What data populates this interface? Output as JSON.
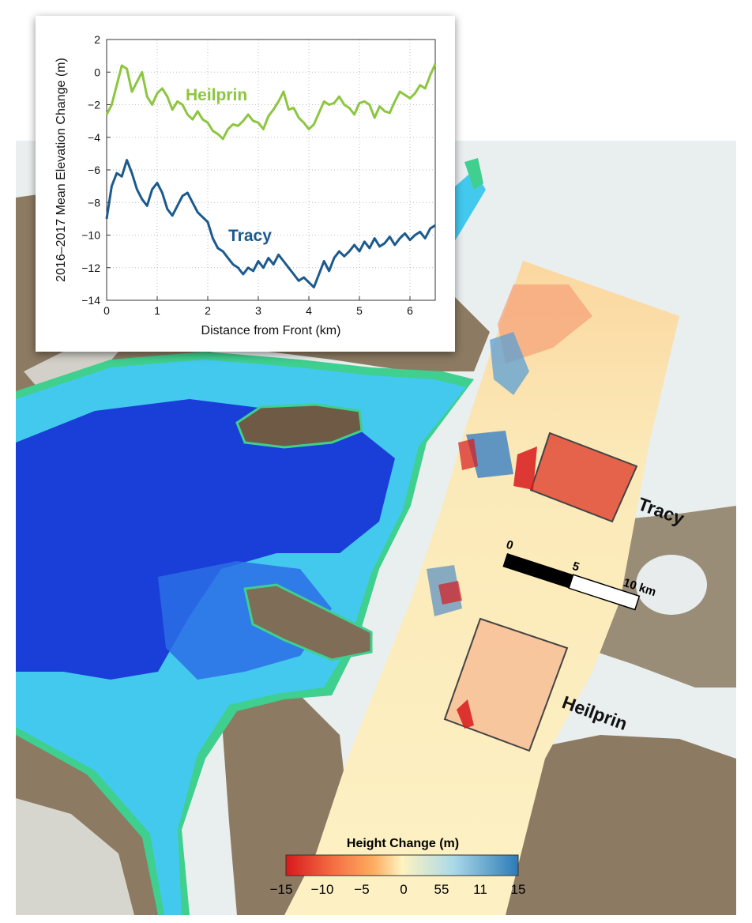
{
  "map": {
    "glacier_labels": {
      "tracy": "Tracy",
      "heilprin": "Heilprin"
    },
    "scale_bar": {
      "ticks": [
        "0",
        "5",
        "10 km"
      ]
    },
    "legend": {
      "title": "Height Change (m)",
      "ticks": [
        "−15",
        "−10",
        "−5",
        "0",
        "55",
        "11",
        "15"
      ],
      "colors": [
        "#d7191c",
        "#f46d43",
        "#fdae61",
        "#fff3bf",
        "#abd9e9",
        "#2c7bb6"
      ]
    },
    "colors": {
      "deep_water": "#1a3fd8",
      "shallow_water": "#43c9ee",
      "shelf": "#3fcf8e",
      "land": "#8c7a62",
      "ice": "#e9eeee"
    }
  },
  "chart_data": {
    "type": "line",
    "xlabel": "Distance from Front (km)",
    "ylabel": "2016–2017 Mean Elevation Change (m)",
    "xlim": [
      0,
      6.5
    ],
    "ylim": [
      -14,
      2
    ],
    "xticks": [
      "0",
      "1",
      "2",
      "3",
      "4",
      "5",
      "6"
    ],
    "yticks": [
      "2",
      "0",
      "−2",
      "−4",
      "−6",
      "−8",
      "−10",
      "−12",
      "−14"
    ],
    "grid": true,
    "series": [
      {
        "name": "Heilprin",
        "color": "#8cc63f",
        "x": [
          0,
          0.1,
          0.2,
          0.3,
          0.4,
          0.5,
          0.6,
          0.7,
          0.8,
          0.9,
          1.0,
          1.1,
          1.2,
          1.3,
          1.4,
          1.5,
          1.6,
          1.7,
          1.8,
          1.9,
          2.0,
          2.1,
          2.2,
          2.3,
          2.4,
          2.5,
          2.6,
          2.7,
          2.8,
          2.9,
          3.0,
          3.1,
          3.2,
          3.3,
          3.4,
          3.5,
          3.6,
          3.7,
          3.8,
          3.9,
          4.0,
          4.1,
          4.2,
          4.3,
          4.4,
          4.5,
          4.6,
          4.7,
          4.8,
          4.9,
          5.0,
          5.1,
          5.2,
          5.3,
          5.4,
          5.5,
          5.6,
          5.7,
          5.8,
          5.9,
          6.0,
          6.1,
          6.2,
          6.3,
          6.4,
          6.5
        ],
        "y": [
          -2.6,
          -2.0,
          -0.8,
          0.4,
          0.2,
          -1.2,
          -0.6,
          0.0,
          -1.5,
          -2.0,
          -1.3,
          -1.0,
          -1.5,
          -2.3,
          -1.8,
          -2.0,
          -2.6,
          -2.9,
          -2.4,
          -2.9,
          -3.1,
          -3.6,
          -3.8,
          -4.1,
          -3.5,
          -3.2,
          -3.3,
          -3.0,
          -2.6,
          -3.0,
          -3.1,
          -3.5,
          -2.7,
          -2.3,
          -1.8,
          -1.2,
          -2.3,
          -2.2,
          -2.8,
          -3.1,
          -3.5,
          -3.2,
          -2.5,
          -1.8,
          -2.0,
          -1.9,
          -1.5,
          -2.0,
          -2.2,
          -2.6,
          -1.9,
          -1.8,
          -2.0,
          -2.8,
          -2.1,
          -2.4,
          -2.5,
          -1.8,
          -1.2,
          -1.4,
          -1.6,
          -1.3,
          -0.8,
          -1.0,
          -0.2,
          0.5
        ]
      },
      {
        "name": "Tracy",
        "color": "#1b5a8e",
        "x": [
          0,
          0.1,
          0.2,
          0.3,
          0.4,
          0.5,
          0.6,
          0.7,
          0.8,
          0.9,
          1.0,
          1.1,
          1.2,
          1.3,
          1.4,
          1.5,
          1.6,
          1.7,
          1.8,
          1.9,
          2.0,
          2.1,
          2.2,
          2.3,
          2.4,
          2.5,
          2.6,
          2.7,
          2.8,
          2.9,
          3.0,
          3.1,
          3.2,
          3.3,
          3.4,
          3.5,
          3.6,
          3.7,
          3.8,
          3.9,
          4.0,
          4.1,
          4.2,
          4.3,
          4.4,
          4.5,
          4.6,
          4.7,
          4.8,
          4.9,
          5.0,
          5.1,
          5.2,
          5.3,
          5.4,
          5.5,
          5.6,
          5.7,
          5.8,
          5.9,
          6.0,
          6.1,
          6.2,
          6.3,
          6.4,
          6.5
        ],
        "y": [
          -9.0,
          -7.0,
          -6.2,
          -6.4,
          -5.4,
          -6.2,
          -7.2,
          -7.8,
          -8.2,
          -7.2,
          -6.8,
          -7.4,
          -8.4,
          -8.8,
          -8.2,
          -7.6,
          -7.4,
          -8.0,
          -8.6,
          -8.9,
          -9.2,
          -10.2,
          -10.8,
          -11.0,
          -11.4,
          -11.8,
          -12.0,
          -12.4,
          -12.0,
          -12.2,
          -11.6,
          -12.0,
          -11.4,
          -11.8,
          -11.2,
          -11.6,
          -12.0,
          -12.4,
          -12.8,
          -12.6,
          -12.9,
          -13.2,
          -12.4,
          -11.6,
          -12.2,
          -11.4,
          -11.0,
          -11.3,
          -11.0,
          -10.6,
          -11.0,
          -10.4,
          -10.8,
          -10.2,
          -10.7,
          -10.5,
          -10.1,
          -10.6,
          -10.2,
          -9.9,
          -10.3,
          -10.0,
          -9.8,
          -10.2,
          -9.6,
          -9.4
        ]
      }
    ]
  }
}
